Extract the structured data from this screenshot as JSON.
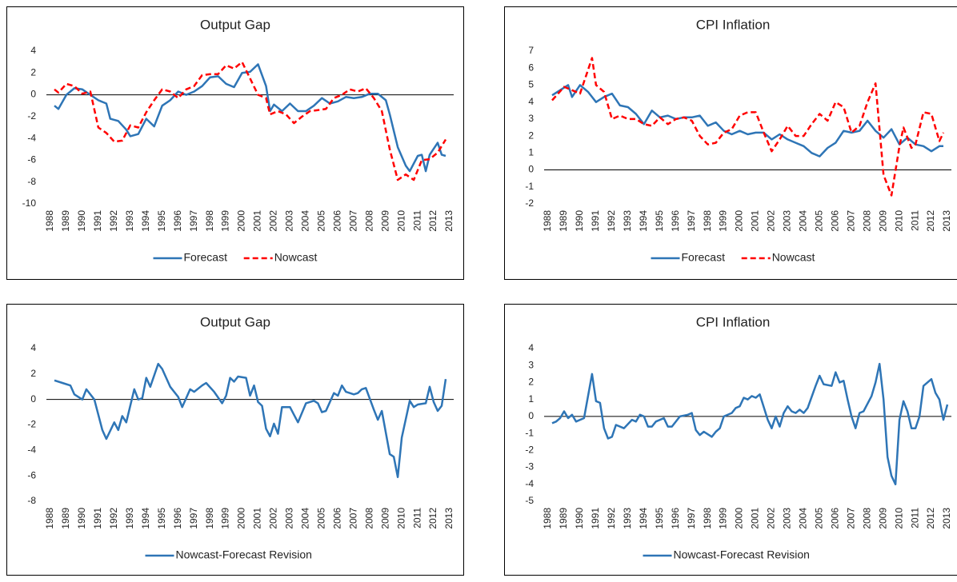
{
  "chart_data": [
    {
      "type": "line",
      "title": "Output Gap",
      "xlim": [
        1988,
        2013
      ],
      "xticks": [
        1988,
        1989,
        1990,
        1991,
        1992,
        1993,
        1994,
        1995,
        1996,
        1997,
        1998,
        1999,
        2000,
        2001,
        2002,
        2003,
        2004,
        2005,
        2006,
        2007,
        2008,
        2009,
        2010,
        2011,
        2012,
        2013
      ],
      "ylim": [
        -10,
        4
      ],
      "yticks": [
        -10,
        -8,
        -6,
        -4,
        -2,
        0,
        2,
        4
      ],
      "legend": "bottom",
      "series": [
        {
          "name": "Forecast",
          "color": "#2e75b6",
          "style": "solid",
          "x": [
            1988.25,
            1988.5,
            1989,
            1989.5,
            1990,
            1990.5,
            1991,
            1991.5,
            1991.75,
            1992.25,
            1992.75,
            1993,
            1993.5,
            1994,
            1994.5,
            1995,
            1995.5,
            1996,
            1996.5,
            1997,
            1997.5,
            1998,
            1998.5,
            1999,
            1999.5,
            2000,
            2000.5,
            2001,
            2001.5,
            2001.75,
            2002,
            2002.5,
            2003,
            2003.5,
            2004,
            2004.5,
            2005,
            2005.5,
            2006,
            2006.5,
            2007,
            2007.5,
            2008,
            2008.5,
            2009,
            2009.25,
            2009.75,
            2010.25,
            2010.5,
            2011,
            2011.25,
            2011.5,
            2011.75,
            2012.25,
            2012.5,
            2012.75
          ],
          "values": [
            -1,
            -1.3,
            0,
            0.6,
            0.5,
            0,
            -0.5,
            -0.8,
            -2.2,
            -2.4,
            -3.2,
            -3.8,
            -3.6,
            -2.2,
            -2.9,
            -1,
            -0.5,
            0.3,
            0,
            0.3,
            0.8,
            1.6,
            1.7,
            1,
            0.7,
            2,
            2.1,
            2.8,
            0.8,
            -1.5,
            -0.9,
            -1.5,
            -0.8,
            -1.5,
            -1.5,
            -1,
            -0.3,
            -0.8,
            -0.6,
            -0.2,
            -0.3,
            -0.2,
            0.1,
            0.1,
            -0.5,
            -1.8,
            -4.8,
            -6.5,
            -7,
            -5.6,
            -5.5,
            -7,
            -5.5,
            -4.4,
            -5.5,
            -5.6
          ]
        },
        {
          "name": "Nowcast",
          "color": "#ff0000",
          "style": "dashed",
          "x": [
            1988.25,
            1988.5,
            1989,
            1989.5,
            1990,
            1990.5,
            1991,
            1991.5,
            1992,
            1992.5,
            1993,
            1993.5,
            1994,
            1994.5,
            1995,
            1995.5,
            1996,
            1996.5,
            1997,
            1997.5,
            1998,
            1998.5,
            1999,
            1999.5,
            2000,
            2000.5,
            2001,
            2001.5,
            2001.75,
            2002.25,
            2002.75,
            2003.25,
            2003.75,
            2004.25,
            2004.75,
            2005.25,
            2005.75,
            2006.25,
            2006.75,
            2007.25,
            2007.75,
            2008.25,
            2008.75,
            2009.25,
            2009.75,
            2010.25,
            2010.75,
            2011.25,
            2011.75,
            2012.25,
            2012.75
          ],
          "values": [
            0.5,
            0.2,
            1,
            0.8,
            0.1,
            0.3,
            -3,
            -3.5,
            -4.3,
            -4.2,
            -2.8,
            -3,
            -1.6,
            -0.5,
            0.5,
            0.3,
            -0.3,
            0.5,
            0.8,
            1.8,
            1.9,
            1.9,
            2.7,
            2.4,
            3,
            1.5,
            0,
            -0.3,
            -1.8,
            -1.5,
            -1.8,
            -2.6,
            -2,
            -1.5,
            -1.4,
            -1.3,
            -0.3,
            0,
            0.5,
            0.3,
            0.6,
            -0.3,
            -1.5,
            -5,
            -7.8,
            -7.3,
            -7.8,
            -6,
            -5.9,
            -5.3,
            -4.1
          ]
        }
      ]
    },
    {
      "type": "line",
      "title": "CPI Inflation",
      "xlim": [
        1988,
        2013
      ],
      "xticks": [
        1988,
        1989,
        1990,
        1991,
        1992,
        1993,
        1994,
        1995,
        1996,
        1997,
        1998,
        1999,
        2000,
        2001,
        2002,
        2003,
        2004,
        2005,
        2006,
        2007,
        2008,
        2009,
        2010,
        2011,
        2012,
        2013
      ],
      "ylim": [
        -2,
        7
      ],
      "yticks": [
        -2,
        -1,
        0,
        1,
        2,
        3,
        4,
        5,
        6,
        7
      ],
      "legend": "bottom",
      "series": [
        {
          "name": "Forecast",
          "color": "#2e75b6",
          "style": "solid",
          "x": [
            1988.25,
            1988.75,
            1989.25,
            1989.5,
            1990,
            1990.5,
            1991,
            1991.5,
            1992,
            1992.5,
            1993,
            1993.5,
            1994,
            1994.5,
            1995,
            1995.5,
            1996,
            1996.5,
            1997,
            1997.5,
            1998,
            1998.5,
            1999,
            1999.5,
            2000,
            2000.5,
            2001,
            2001.5,
            2002,
            2002.5,
            2003,
            2003.5,
            2004,
            2004.5,
            2005,
            2005.5,
            2006,
            2006.5,
            2007,
            2007.5,
            2008,
            2008.5,
            2009,
            2009.5,
            2010,
            2010.5,
            2011,
            2011.5,
            2012,
            2012.5,
            2012.75
          ],
          "values": [
            4.4,
            4.7,
            5,
            4.3,
            5,
            4.6,
            4,
            4.3,
            4.5,
            3.8,
            3.7,
            3.3,
            2.7,
            3.5,
            3.1,
            3.2,
            3,
            3.1,
            3.1,
            3.2,
            2.6,
            2.8,
            2.3,
            2.1,
            2.3,
            2.1,
            2.2,
            2.2,
            1.8,
            2.1,
            1.8,
            1.6,
            1.4,
            1,
            0.8,
            1.3,
            1.6,
            2.3,
            2.2,
            2.3,
            2.9,
            2.3,
            1.9,
            2.4,
            1.5,
            1.9,
            1.5,
            1.4,
            1.1,
            1.4,
            1.4
          ]
        },
        {
          "name": "Nowcast",
          "color": "#ff0000",
          "style": "dashed",
          "x": [
            1988.25,
            1989,
            1989.5,
            1990,
            1990.75,
            1991,
            1991.5,
            1992,
            1992.5,
            1993,
            1993.5,
            1994,
            1994.5,
            1995,
            1995.5,
            1996,
            1996.5,
            1997,
            1997.5,
            1998,
            1998.5,
            1999,
            1999.5,
            2000,
            2000.5,
            2001,
            2001.5,
            2002,
            2002.5,
            2003,
            2003.5,
            2004,
            2004.5,
            2005,
            2005.5,
            2006,
            2006.5,
            2007,
            2007.5,
            2008,
            2008.5,
            2009,
            2009.5,
            2010,
            2010.25,
            2010.75,
            2011,
            2011.5,
            2012,
            2012.5,
            2012.75
          ],
          "values": [
            4.1,
            4.9,
            4.7,
            4.5,
            6.6,
            5,
            4.6,
            3,
            3.2,
            3,
            3,
            2.7,
            2.6,
            3.1,
            2.7,
            3,
            3.1,
            2.9,
            2,
            1.5,
            1.6,
            2.2,
            2.4,
            3.2,
            3.4,
            3.4,
            2.2,
            1.1,
            1.8,
            2.6,
            2,
            2,
            2.7,
            3.3,
            2.9,
            4,
            3.7,
            2.2,
            2.6,
            4,
            5.1,
            -0.3,
            -1.5,
            1.4,
            2.5,
            1.3,
            1.5,
            3.4,
            3.3,
            1.7,
            2.2
          ]
        }
      ]
    },
    {
      "type": "line",
      "title": "Output Gap",
      "xlim": [
        1988,
        2013
      ],
      "xticks": [
        1988,
        1989,
        1990,
        1991,
        1992,
        1993,
        1994,
        1995,
        1996,
        1997,
        1998,
        1999,
        2000,
        2001,
        2002,
        2003,
        2004,
        2005,
        2006,
        2007,
        2008,
        2009,
        2010,
        2011,
        2012,
        2013
      ],
      "ylim": [
        -8,
        4
      ],
      "yticks": [
        -8,
        -6,
        -4,
        -2,
        0,
        2,
        4
      ],
      "legend": "bottom",
      "series": [
        {
          "name": "Nowcast-Forecast Revision",
          "color": "#2e75b6",
          "style": "solid",
          "x": [
            1988.25,
            1988.75,
            1989.25,
            1989.5,
            1990,
            1990.25,
            1990.75,
            1991.25,
            1991.5,
            1992,
            1992.25,
            1992.5,
            1992.75,
            1993.25,
            1993.5,
            1993.75,
            1994,
            1994.25,
            1994.75,
            1995,
            1995.5,
            1996,
            1996.25,
            1996.75,
            1997,
            1997.5,
            1997.75,
            1998.25,
            1998.75,
            1999,
            1999.25,
            1999.5,
            1999.75,
            2000.25,
            2000.5,
            2000.75,
            2001,
            2001.25,
            2001.5,
            2001.75,
            2002,
            2002.25,
            2002.5,
            2003,
            2003.25,
            2003.5,
            2004,
            2004.5,
            2004.75,
            2005,
            2005.25,
            2005.75,
            2006,
            2006.25,
            2006.5,
            2007,
            2007.25,
            2007.5,
            2007.75,
            2008.25,
            2008.5,
            2008.75,
            2009.25,
            2009.5,
            2009.75,
            2010,
            2010.5,
            2010.75,
            2011,
            2011.5,
            2011.75,
            2012,
            2012.25,
            2012.5,
            2012.75
          ],
          "values": [
            1.5,
            1.3,
            1.1,
            0.4,
            0,
            0.8,
            0,
            -2.4,
            -3.1,
            -1.8,
            -2.4,
            -1.3,
            -1.8,
            0.8,
            0,
            0.1,
            1.7,
            1,
            2.8,
            2.4,
            1,
            0.2,
            -0.6,
            0.8,
            0.6,
            1.1,
            1.3,
            0.6,
            -0.3,
            0.3,
            1.7,
            1.4,
            1.8,
            1.7,
            0.3,
            1.1,
            -0.2,
            -0.5,
            -2.3,
            -2.9,
            -1.9,
            -2.7,
            -0.6,
            -0.6,
            -1.2,
            -1.8,
            -0.3,
            -0.1,
            -0.3,
            -1,
            -0.9,
            0.5,
            0.3,
            1.1,
            0.6,
            0.4,
            0.5,
            0.8,
            0.9,
            -0.8,
            -1.6,
            -0.9,
            -4.3,
            -4.5,
            -6.1,
            -3,
            -0.1,
            -0.6,
            -0.4,
            -0.3,
            1,
            -0.2,
            -0.9,
            -0.5,
            1.6
          ]
        }
      ]
    },
    {
      "type": "line",
      "title": "CPI Inflation",
      "xlim": [
        1988,
        2013
      ],
      "xticks": [
        1988,
        1989,
        1990,
        1991,
        1992,
        1993,
        1994,
        1995,
        1996,
        1997,
        1998,
        1999,
        2000,
        2001,
        2002,
        2003,
        2004,
        2005,
        2006,
        2007,
        2008,
        2009,
        2010,
        2011,
        2012,
        2013
      ],
      "ylim": [
        -5,
        4
      ],
      "yticks": [
        -5,
        -4,
        -3,
        -2,
        -1,
        0,
        1,
        2,
        3,
        4
      ],
      "legend": "bottom",
      "series": [
        {
          "name": "Nowcast-Forecast Revision",
          "color": "#2e75b6",
          "style": "solid",
          "x": [
            1988.25,
            1988.5,
            1988.75,
            1989,
            1989.25,
            1989.5,
            1989.75,
            1990.25,
            1990.75,
            1991,
            1991.25,
            1991.5,
            1991.75,
            1992,
            1992.25,
            1992.75,
            1993.25,
            1993.5,
            1993.75,
            1994,
            1994.25,
            1994.5,
            1994.75,
            1995.25,
            1995.5,
            1995.75,
            1996.25,
            1996.75,
            1997,
            1997.25,
            1997.5,
            1997.75,
            1998.25,
            1998.5,
            1998.75,
            1999,
            1999.5,
            1999.75,
            2000,
            2000.25,
            2000.5,
            2000.75,
            2001,
            2001.25,
            2001.75,
            2002,
            2002.25,
            2002.5,
            2002.75,
            2003,
            2003.25,
            2003.5,
            2003.75,
            2004,
            2004.25,
            2004.75,
            2005,
            2005.25,
            2005.75,
            2006,
            2006.25,
            2006.5,
            2006.75,
            2007,
            2007.25,
            2007.5,
            2007.75,
            2008.25,
            2008.5,
            2008.75,
            2009,
            2009.25,
            2009.5,
            2009.75,
            2010,
            2010.25,
            2010.5,
            2010.75,
            2011,
            2011.25,
            2011.5,
            2012,
            2012.25,
            2012.5,
            2012.75,
            2013
          ],
          "values": [
            -0.4,
            -0.3,
            -0.1,
            0.3,
            -0.1,
            0.1,
            -0.3,
            -0.1,
            2.5,
            0.9,
            0.8,
            -0.7,
            -1.3,
            -1.2,
            -0.5,
            -0.7,
            -0.2,
            -0.3,
            0.1,
            0,
            -0.6,
            -0.6,
            -0.3,
            -0.1,
            -0.6,
            -0.6,
            0,
            0.1,
            0.2,
            -0.8,
            -1.1,
            -0.9,
            -1.2,
            -0.9,
            -0.7,
            0,
            0.2,
            0.5,
            0.6,
            1.1,
            1,
            1.2,
            1.1,
            1.3,
            -0.2,
            -0.7,
            0,
            -0.6,
            0.2,
            0.6,
            0.3,
            0.2,
            0.4,
            0.2,
            0.5,
            1.8,
            2.4,
            1.9,
            1.8,
            2.6,
            2,
            2.1,
            1,
            0,
            -0.7,
            0.2,
            0.3,
            1.2,
            2,
            3.1,
            1,
            -2.4,
            -3.5,
            -4,
            -0.2,
            0.9,
            0.3,
            -0.7,
            -0.7,
            0,
            1.8,
            2.2,
            1.4,
            1,
            -0.2,
            0.7
          ]
        }
      ]
    }
  ]
}
